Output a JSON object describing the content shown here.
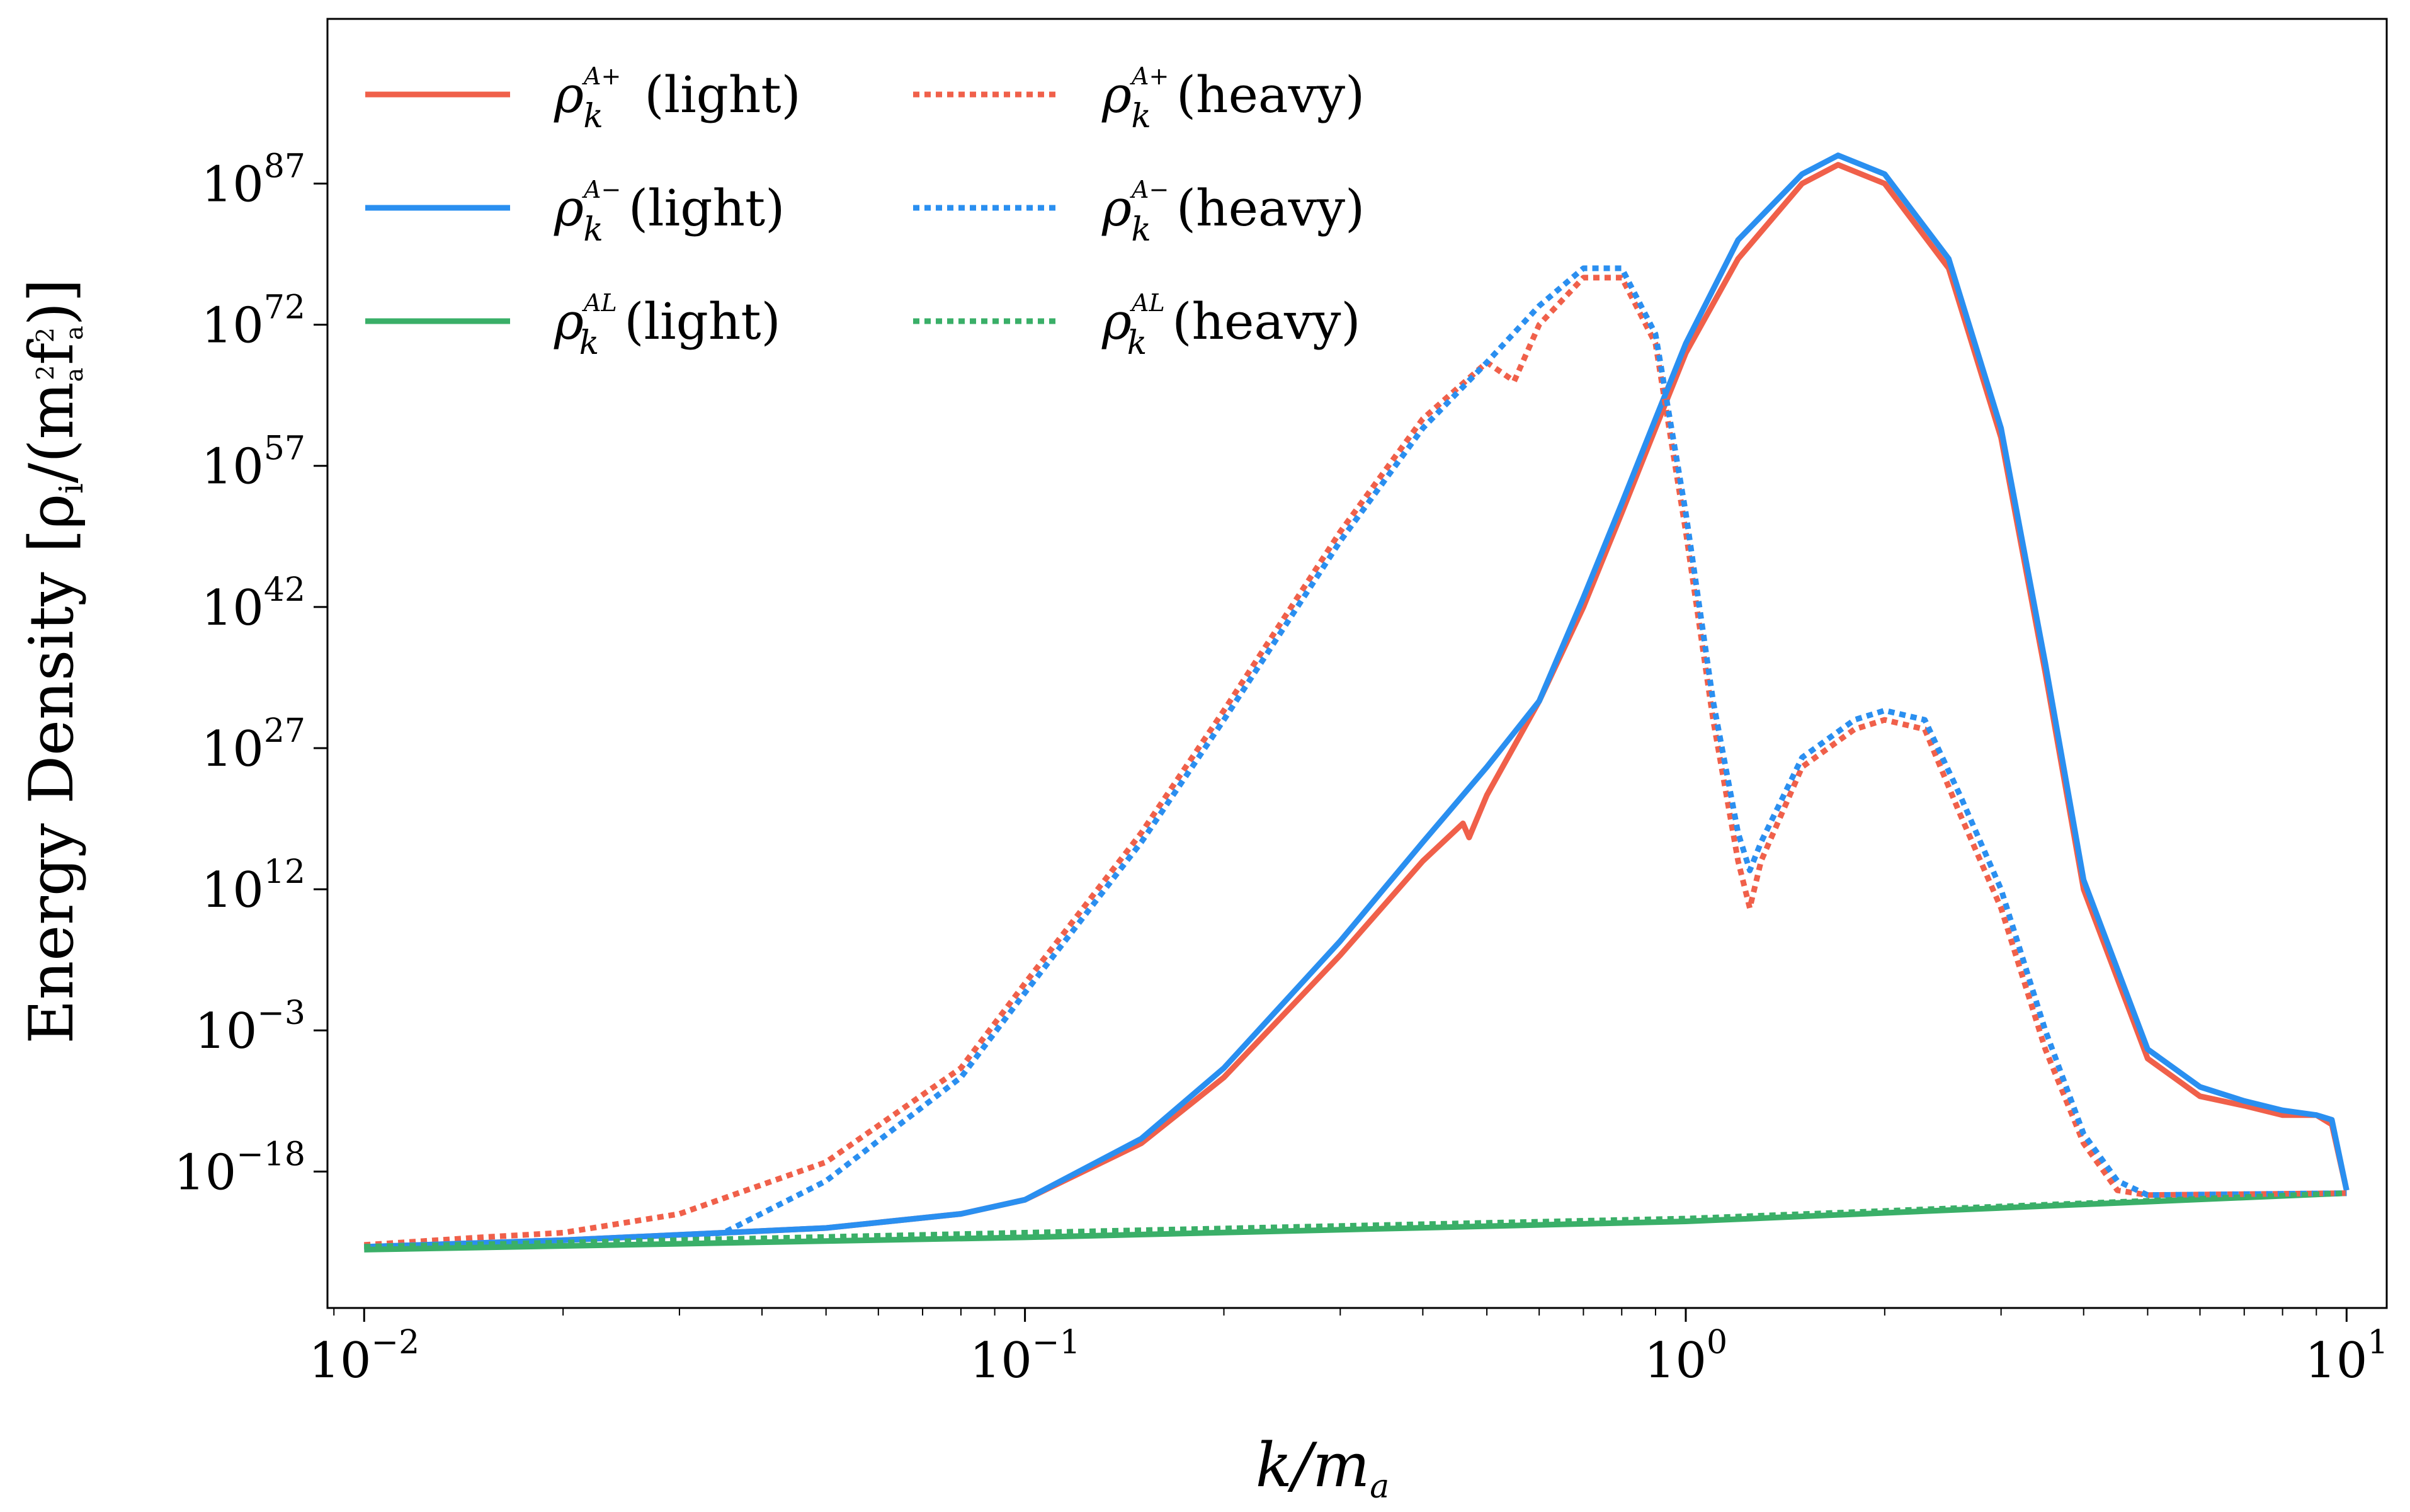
{
  "chart_data": {
    "type": "line",
    "title": "",
    "xlabel": "k/m",
    "xlabel_sub": "a",
    "ylabel": "Energy Density [ρ",
    "ylabel_sub": "i",
    "ylabel_rest": "/(m",
    "ylabel_sub2": "a",
    "ylabel_sup2": "2",
    "ylabel_f": "f",
    "ylabel_sup3": "2",
    "ylabel_sub3": "a",
    "ylabel_end": ")]",
    "xscale": "log",
    "yscale": "log",
    "xlim": [
      0.0088,
      11.5
    ],
    "ylim_log10": [
      -32.5,
      104.5
    ],
    "x_ticks": [
      {
        "base": "10",
        "exp": "−2"
      },
      {
        "base": "10",
        "exp": "−1"
      },
      {
        "base": "10",
        "exp": "0"
      },
      {
        "base": "10",
        "exp": "1"
      }
    ],
    "y_ticks": [
      {
        "base": "10",
        "exp": "−18"
      },
      {
        "base": "10",
        "exp": "−3"
      },
      {
        "base": "10",
        "exp": "12"
      },
      {
        "base": "10",
        "exp": "27"
      },
      {
        "base": "10",
        "exp": "42"
      },
      {
        "base": "10",
        "exp": "57"
      },
      {
        "base": "10",
        "exp": "72"
      },
      {
        "base": "10",
        "exp": "87"
      }
    ],
    "legend_position": "top-left",
    "series": [
      {
        "name": "A+ (light)",
        "label_sup": "A+",
        "label_text": " (light)",
        "style": "solid",
        "color": "#f0604a",
        "points": [
          [
            0.01,
            -26
          ],
          [
            0.02,
            -25.3
          ],
          [
            0.05,
            -24
          ],
          [
            0.08,
            -22.5
          ],
          [
            0.1,
            -21
          ],
          [
            0.15,
            -15
          ],
          [
            0.2,
            -8
          ],
          [
            0.3,
            5
          ],
          [
            0.4,
            15
          ],
          [
            0.46,
            19
          ],
          [
            0.47,
            17.5
          ],
          [
            0.5,
            22
          ],
          [
            0.6,
            32
          ],
          [
            0.7,
            42
          ],
          [
            0.8,
            52
          ],
          [
            0.9,
            61
          ],
          [
            1.0,
            69
          ],
          [
            1.2,
            79
          ],
          [
            1.5,
            87
          ],
          [
            1.7,
            89
          ],
          [
            2.0,
            87
          ],
          [
            2.5,
            78
          ],
          [
            3.0,
            60
          ],
          [
            3.5,
            35
          ],
          [
            4.0,
            12
          ],
          [
            5.0,
            -6
          ],
          [
            6.0,
            -10
          ],
          [
            7.0,
            -11
          ],
          [
            8.0,
            -12
          ],
          [
            9.0,
            -12
          ],
          [
            9.5,
            -13
          ],
          [
            10.0,
            -20
          ]
        ]
      },
      {
        "name": "A− (light)",
        "label_sup": "A−",
        "label_text": "(light)",
        "style": "solid",
        "color": "#2a8ff0",
        "points": [
          [
            0.01,
            -26
          ],
          [
            0.02,
            -25.3
          ],
          [
            0.05,
            -24
          ],
          [
            0.08,
            -22.5
          ],
          [
            0.1,
            -21
          ],
          [
            0.15,
            -14.5
          ],
          [
            0.2,
            -7
          ],
          [
            0.3,
            6.5
          ],
          [
            0.4,
            17
          ],
          [
            0.5,
            25
          ],
          [
            0.6,
            32
          ],
          [
            0.7,
            43
          ],
          [
            0.8,
            53
          ],
          [
            0.9,
            62
          ],
          [
            1.0,
            70
          ],
          [
            1.2,
            81
          ],
          [
            1.5,
            88
          ],
          [
            1.7,
            90
          ],
          [
            2.0,
            88
          ],
          [
            2.5,
            79
          ],
          [
            3.0,
            61
          ],
          [
            3.5,
            36
          ],
          [
            4.0,
            13
          ],
          [
            5.0,
            -5
          ],
          [
            6.0,
            -9
          ],
          [
            7.0,
            -10.5
          ],
          [
            8.0,
            -11.5
          ],
          [
            9.0,
            -12
          ],
          [
            9.5,
            -12.5
          ],
          [
            10.0,
            -20
          ]
        ]
      },
      {
        "name": "AL (light)",
        "label_sup": "AL",
        "label_text": "(light)",
        "style": "solid",
        "color": "#3aaf68",
        "points": [
          [
            0.01,
            -26.3
          ],
          [
            0.1,
            -25
          ],
          [
            1.0,
            -23.3
          ],
          [
            10.0,
            -20.3
          ]
        ]
      },
      {
        "name": "A+ (heavy)",
        "label_sup": "A+",
        "label_text": "(heavy)",
        "style": "dotted",
        "color": "#f0604a",
        "points": [
          [
            0.01,
            -25.8
          ],
          [
            0.015,
            -25
          ],
          [
            0.02,
            -24.5
          ],
          [
            0.03,
            -22.5
          ],
          [
            0.05,
            -17
          ],
          [
            0.08,
            -7
          ],
          [
            0.1,
            2
          ],
          [
            0.15,
            18
          ],
          [
            0.2,
            31
          ],
          [
            0.3,
            50
          ],
          [
            0.4,
            62
          ],
          [
            0.5,
            68
          ],
          [
            0.55,
            66
          ],
          [
            0.6,
            72
          ],
          [
            0.7,
            77
          ],
          [
            0.8,
            77
          ],
          [
            0.9,
            70
          ],
          [
            1.0,
            50
          ],
          [
            1.1,
            30
          ],
          [
            1.2,
            15
          ],
          [
            1.25,
            10
          ],
          [
            1.3,
            15
          ],
          [
            1.5,
            25
          ],
          [
            1.8,
            29
          ],
          [
            2.0,
            30
          ],
          [
            2.3,
            29
          ],
          [
            2.6,
            20
          ],
          [
            3.0,
            10
          ],
          [
            3.5,
            -5
          ],
          [
            4.0,
            -15
          ],
          [
            4.5,
            -20
          ],
          [
            5.0,
            -20.5
          ],
          [
            10.0,
            -20.3
          ]
        ]
      },
      {
        "name": "A− (heavy)",
        "label_sup": "A−",
        "label_text": "(heavy)",
        "style": "dotted",
        "color": "#2a8ff0",
        "points": [
          [
            0.01,
            -26
          ],
          [
            0.02,
            -25.3
          ],
          [
            0.03,
            -25
          ],
          [
            0.035,
            -24.5
          ],
          [
            0.05,
            -19
          ],
          [
            0.08,
            -8
          ],
          [
            0.1,
            1
          ],
          [
            0.15,
            17
          ],
          [
            0.2,
            30
          ],
          [
            0.3,
            49
          ],
          [
            0.4,
            61
          ],
          [
            0.5,
            68
          ],
          [
            0.6,
            74
          ],
          [
            0.7,
            78
          ],
          [
            0.8,
            78
          ],
          [
            0.9,
            71
          ],
          [
            1.0,
            52
          ],
          [
            1.1,
            32
          ],
          [
            1.2,
            18
          ],
          [
            1.25,
            14
          ],
          [
            1.3,
            17
          ],
          [
            1.5,
            26
          ],
          [
            1.8,
            30
          ],
          [
            2.0,
            31
          ],
          [
            2.3,
            30
          ],
          [
            2.6,
            22
          ],
          [
            3.0,
            12
          ],
          [
            3.5,
            -3
          ],
          [
            4.0,
            -14
          ],
          [
            4.5,
            -19
          ],
          [
            5.0,
            -20.5
          ],
          [
            10.0,
            -20.3
          ]
        ]
      },
      {
        "name": "AL (heavy)",
        "label_sup": "AL",
        "label_text": "(heavy)",
        "style": "dotted",
        "color": "#3aaf68",
        "points": [
          [
            0.01,
            -26
          ],
          [
            0.1,
            -24.5
          ],
          [
            1.0,
            -23
          ],
          [
            10.0,
            -20.3
          ]
        ]
      }
    ]
  },
  "legend": {
    "rho": "ρ",
    "sub_k": "k"
  }
}
